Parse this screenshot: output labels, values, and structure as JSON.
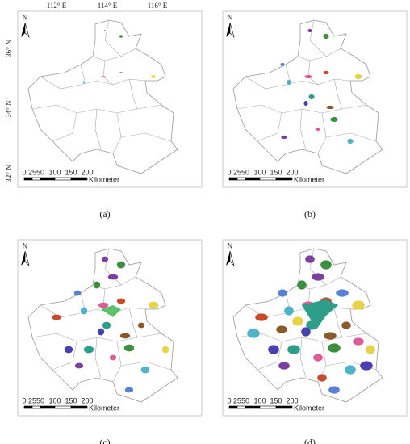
{
  "axes": {
    "longitude": [
      "112° E",
      "114° E",
      "116° E"
    ],
    "latitude": [
      "36° N",
      "34° N",
      "32° N"
    ]
  },
  "panels": [
    {
      "label": "(a)",
      "north": "N",
      "scale": {
        "ticks": [
          0,
          25,
          50,
          100,
          150,
          200
        ],
        "unit": "Kilometer"
      }
    },
    {
      "label": "(b)",
      "north": "N",
      "scale": {
        "ticks": [
          0,
          25,
          50,
          100,
          150,
          200
        ],
        "unit": "Kilometer"
      }
    },
    {
      "label": "(c)",
      "north": "N",
      "scale": {
        "ticks": [
          0,
          25,
          50,
          100,
          150,
          200
        ],
        "unit": "Kilometer"
      }
    },
    {
      "label": "(d)",
      "north": "N",
      "scale": {
        "ticks": [
          0,
          25,
          50,
          100,
          150,
          200
        ],
        "unit": "Kilometer"
      }
    }
  ]
}
